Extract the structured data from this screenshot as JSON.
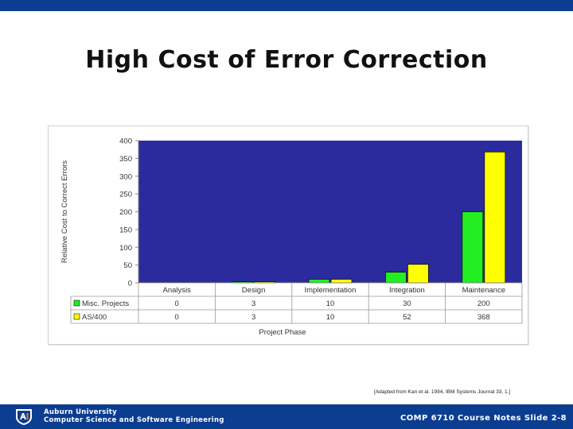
{
  "slide": {
    "title": "High Cost of Error Correction",
    "citation": "[Adapted from Kan et al. 1994, IBM Systems Journal 33, 1.]"
  },
  "footer": {
    "org_line1": "Auburn University",
    "org_line2": "Computer Science and Software Engineering",
    "slide_label": "COMP 6710 Course Notes Slide 2-8",
    "logo_icon": "auburn-university-logo"
  },
  "colors": {
    "plot_background": "#2b2b9e",
    "misc_projects": "#22ee22",
    "as400": "#ffff00",
    "footer_bar": "#0b3d91"
  },
  "chart_data": {
    "type": "bar",
    "title": "",
    "xlabel": "Project Phase",
    "ylabel": "Relative Cost to Correct Errors",
    "ylim": [
      0,
      400
    ],
    "yticks": [
      0,
      50,
      100,
      150,
      200,
      250,
      300,
      350,
      400
    ],
    "categories": [
      "Analysis",
      "Design",
      "Implementation",
      "Integration",
      "Maintenance"
    ],
    "series": [
      {
        "name": "Misc. Projects",
        "values": [
          0,
          3,
          10,
          30,
          200
        ]
      },
      {
        "name": "AS/400",
        "values": [
          0,
          3,
          10,
          52,
          368
        ]
      }
    ],
    "data_table": true,
    "grid": false,
    "legend": "in data table"
  }
}
